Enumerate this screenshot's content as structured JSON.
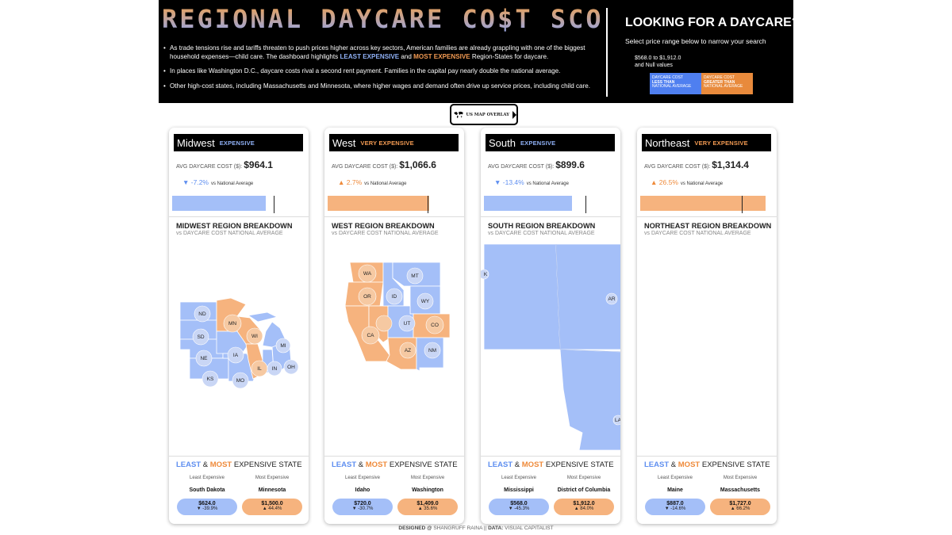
{
  "header": {
    "title": "REGIONAL DAYCARE CO$T SCORECARD",
    "bullets": [
      [
        "As trade tensions rise and tariffs threaten to push prices higher across key sectors, American families are already grappling with one of the biggest household expenses—child care. The dashboard highlights ",
        "LEAST EXPENSIVE",
        " and ",
        "MOST EXPENSIVE",
        " Region-States for daycare."
      ],
      "In places like Washington D.C., daycare costs rival a second rent payment. Families in the capital pay nearly double the national average.",
      "Other high-cost states, including Massachusetts and Minnesota, where higher wages and demand often drive up service prices, including child care."
    ],
    "right_title": "LOOKING FOR A DAYCARE?",
    "right_sub": "Select price range below to narrow your search",
    "range_line1": "$568.0 to $1,912.0",
    "range_line2": "and Null values",
    "legend_less": [
      "DAYCARE COST",
      "LESS THAN",
      "NATIONAL AVERAGE"
    ],
    "legend_more": [
      "DAYCARE COST",
      "GREATER THAN",
      "NATIONAL AVERAGE"
    ]
  },
  "overlay_button": "US MAP OVERLAY",
  "labels": {
    "avg": "AVG DAYCARE COST ($):",
    "vs": "vs National Average",
    "breakdown_sub": "vs DAYCARE COST NATIONAL AVERAGE",
    "least": "LEAST",
    "amp": "&",
    "most": "MOST",
    "expensive_state": "EXPENSIVE STATE",
    "least_expensive": "Least Expensive",
    "most_expensive": "Most Expensive"
  },
  "colors": {
    "below": "#a4bff8",
    "above": "#f6b37e",
    "below_text": "#5f8ff0",
    "above_text": "#ef8a3a"
  },
  "regions": [
    {
      "name": "Midwest",
      "level": "EXPENSIVE",
      "avg": "$964.1",
      "change": "▼ -7.2%",
      "change_dir": "down",
      "bar_fraction": 0.7,
      "marker_fraction": 0.76,
      "breakdown_title": "MIDWEST REGION BREAKDOWN",
      "state_labels": [
        "ND",
        "MN",
        "SD",
        "WI",
        "MI",
        "IA",
        "NE",
        "IL",
        "IN",
        "OH",
        "KS",
        "MO"
      ],
      "least": {
        "state": "South Dakota",
        "value": "$624.0",
        "pct": "▼ -39.9%"
      },
      "most": {
        "state": "Minnesota",
        "value": "$1,500.0",
        "pct": "▲ 44.4%"
      }
    },
    {
      "name": "West",
      "level": "VERY EXPENSIVE",
      "avg": "$1,066.6",
      "change": "▲ 2.7%",
      "change_dir": "up",
      "bar_fraction": 0.76,
      "marker_fraction": 0.75,
      "breakdown_title": "WEST REGION BREAKDOWN",
      "state_labels": [
        "WA",
        "MT",
        "OR",
        "ID",
        "WY",
        "UT",
        "CO",
        "CA",
        "AZ",
        "NM"
      ],
      "least": {
        "state": "Idaho",
        "value": "$720.0",
        "pct": "▼ -30.7%"
      },
      "most": {
        "state": "Washington",
        "value": "$1,409.0",
        "pct": "▲ 35.6%"
      }
    },
    {
      "name": "South",
      "level": "EXPENSIVE",
      "avg": "$899.6",
      "change": "▼ -13.4%",
      "change_dir": "down",
      "bar_fraction": 0.66,
      "marker_fraction": 0.76,
      "breakdown_title": "SOUTH REGION BREAKDOWN",
      "state_labels": [
        "K",
        "AR",
        "LA"
      ],
      "least": {
        "state": "Mississippi",
        "value": "$568.0",
        "pct": "▼ -45.3%"
      },
      "most": {
        "state": "District of Columbia",
        "value": "$1,912.0",
        "pct": "▲ 84.0%"
      }
    },
    {
      "name": "Northeast",
      "level": "VERY EXPENSIVE",
      "avg": "$1,314.4",
      "change": "▲ 26.5%",
      "change_dir": "up",
      "bar_fraction": 0.94,
      "marker_fraction": 0.76,
      "breakdown_title": "NORTHEAST REGION BREAKDOWN",
      "state_labels": [],
      "least": {
        "state": "Maine",
        "value": "$887.0",
        "pct": "▼ -14.6%"
      },
      "most": {
        "state": "Massachusetts",
        "value": "$1,727.0",
        "pct": "▲ 66.2%"
      }
    }
  ],
  "footer": {
    "designed": "DESIGNED @",
    "author": "SHANGRUFF RAINA",
    "sep": "||",
    "data_label": "DATA:",
    "source": "VISUAL CAPITALIST"
  }
}
